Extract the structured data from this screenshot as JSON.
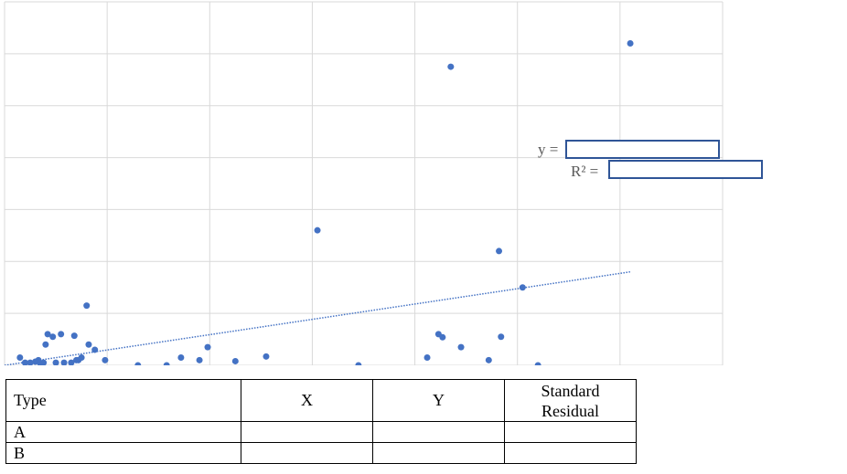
{
  "chart_data": {
    "type": "scatter",
    "title": "",
    "xlabel": "",
    "ylabel": "",
    "xlim": [
      0,
      7
    ],
    "ylim": [
      0,
      7
    ],
    "grid": true,
    "series": [
      {
        "points": [
          [
            0.15,
            0.15
          ],
          [
            0.2,
            0.05
          ],
          [
            0.25,
            0.05
          ],
          [
            0.3,
            0.07
          ],
          [
            0.33,
            0.1
          ],
          [
            0.35,
            0.03
          ],
          [
            0.38,
            0.05
          ],
          [
            0.4,
            0.4
          ],
          [
            0.42,
            0.6
          ],
          [
            0.47,
            0.55
          ],
          [
            0.5,
            0.05
          ],
          [
            0.55,
            0.6
          ],
          [
            0.58,
            0.05
          ],
          [
            0.65,
            0.05
          ],
          [
            0.68,
            0.57
          ],
          [
            0.7,
            0.1
          ],
          [
            0.72,
            0.1
          ],
          [
            0.75,
            0.15
          ],
          [
            0.8,
            1.15
          ],
          [
            0.82,
            0.4
          ],
          [
            0.88,
            0.3
          ],
          [
            0.98,
            0.1
          ],
          [
            1.3,
            0.0
          ],
          [
            1.58,
            0.0
          ],
          [
            1.72,
            0.15
          ],
          [
            1.9,
            0.1
          ],
          [
            1.98,
            0.35
          ],
          [
            2.25,
            0.08
          ],
          [
            2.55,
            0.17
          ],
          [
            3.05,
            2.6
          ],
          [
            3.45,
            0.0
          ],
          [
            4.12,
            0.15
          ],
          [
            4.23,
            0.6
          ],
          [
            4.27,
            0.54
          ],
          [
            4.35,
            5.75
          ],
          [
            4.45,
            0.35
          ],
          [
            4.72,
            0.1
          ],
          [
            4.82,
            2.2
          ],
          [
            4.84,
            0.55
          ],
          [
            5.05,
            1.5
          ],
          [
            5.2,
            0.0
          ],
          [
            6.1,
            6.2
          ]
        ]
      }
    ],
    "trendline": {
      "style": "dotted",
      "from": [
        0.0,
        0.0
      ],
      "to": [
        6.1,
        1.8
      ]
    }
  },
  "equation": {
    "y_label": "y =",
    "r2_label": "R² ="
  },
  "table": {
    "headers": [
      "Type",
      "X",
      "Y",
      "Standard Residual"
    ],
    "header_residual_line1": "Standard",
    "header_residual_line2": "Residual",
    "rows": [
      {
        "type": "A"
      },
      {
        "type": "B"
      }
    ]
  },
  "colors": {
    "point": "#4472c4",
    "trend": "#4472c4",
    "grid": "#d9d9d9",
    "box": "#2f5597"
  }
}
